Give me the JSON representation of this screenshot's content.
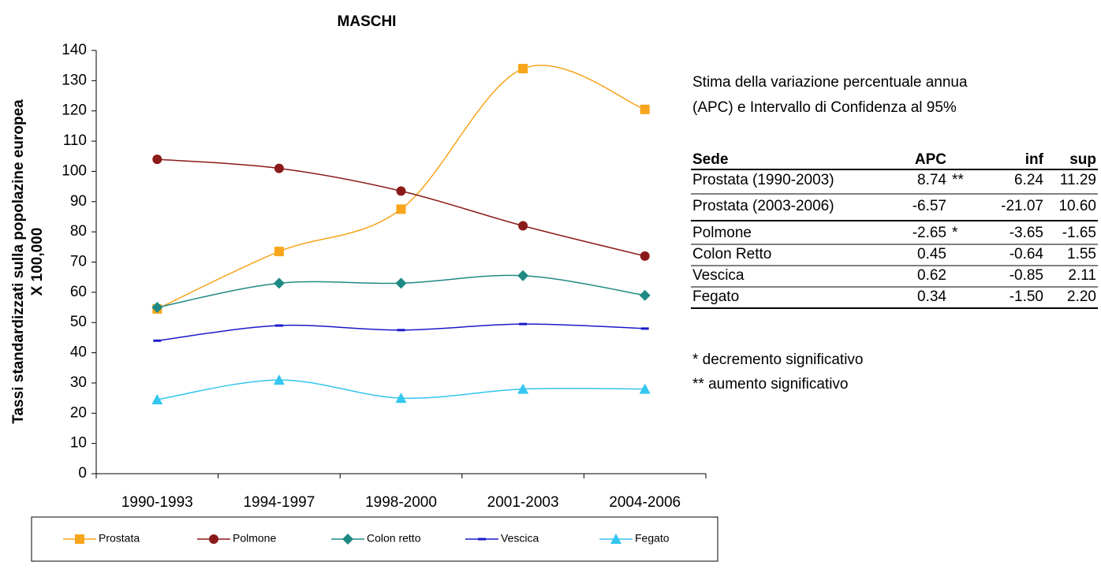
{
  "chart_data": {
    "type": "line",
    "title": "MASCHI",
    "ylabel": [
      "Tassi standardizzati sulla popolazine europea",
      "X 100,000"
    ],
    "categories": [
      "1990-1993",
      "1994-1997",
      "1998-2000",
      "2001-2003",
      "2004-2006"
    ],
    "series": [
      {
        "name": "Prostata",
        "color": "#f7a51c",
        "marker": "square",
        "values": [
          54.5,
          73.5,
          87.5,
          134,
          120.5
        ]
      },
      {
        "name": "Polmone",
        "color": "#8b1a1a",
        "marker": "circle",
        "values": [
          104,
          101,
          93.5,
          82,
          72
        ]
      },
      {
        "name": "Colon retto",
        "color": "#1f8a84",
        "marker": "diamond",
        "values": [
          55,
          63,
          63,
          65.5,
          59
        ]
      },
      {
        "name": "Vescica",
        "color": "#1a1ac8",
        "marker": "dash",
        "values": [
          44,
          49,
          47.5,
          49.5,
          48
        ]
      },
      {
        "name": "Fegato",
        "color": "#33c6ee",
        "marker": "triangle",
        "values": [
          24.5,
          31,
          25,
          28,
          28
        ]
      }
    ],
    "ylim": [
      0,
      140
    ],
    "yticks": [
      0,
      10,
      20,
      30,
      40,
      50,
      60,
      70,
      80,
      90,
      100,
      110,
      120,
      130,
      140
    ],
    "legend": "bottom",
    "smooth": true
  },
  "caption": [
    "Stima della variazione percentuale annua",
    "(APC) e Intervallo di Confidenza al 95%"
  ],
  "table": {
    "header": {
      "sede": "Sede",
      "apc": "APC",
      "inf": "inf",
      "sup": "sup"
    },
    "rows": [
      {
        "sede": "Prostata (1990-2003)",
        "apc": "8.74",
        "sig": "**",
        "inf": "6.24",
        "sup": "11.29"
      },
      {
        "sede": "Prostata (2003-2006)",
        "apc": "-6.57",
        "inf": "-21.07",
        "sup": "10.60"
      },
      {
        "sede": "Polmone",
        "apc": "-2.65",
        "sig": "*",
        "inf": "-3.65",
        "sup": "-1.65"
      },
      {
        "sede": "Colon Retto",
        "apc": "0.45",
        "inf": "-0.64",
        "sup": "1.55"
      },
      {
        "sede": "Vescica",
        "apc": "0.62",
        "inf": "-0.85",
        "sup": "2.11"
      },
      {
        "sede": "Fegato",
        "apc": "0.34",
        "inf": "-1.50",
        "sup": "2.20"
      }
    ]
  },
  "notes": [
    "* decremento significativo",
    "** aumento significativo"
  ]
}
